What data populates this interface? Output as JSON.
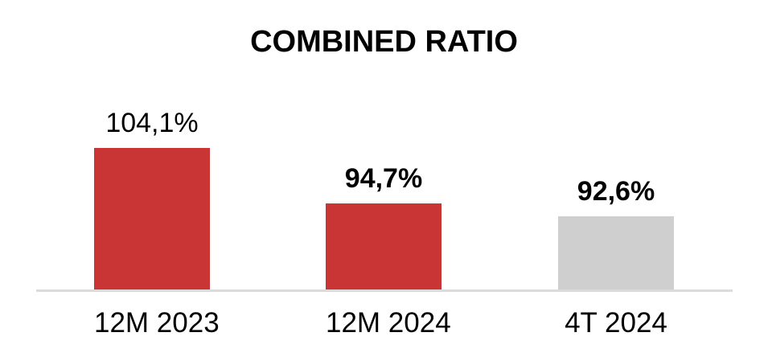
{
  "chart_data": {
    "type": "bar",
    "title": "COMBINED RATIO",
    "categories": [
      "12M 2023",
      "12M 2024",
      "4T 2024"
    ],
    "values": [
      104.1,
      94.7,
      92.6
    ],
    "value_labels": [
      "104,1%",
      "94,7%",
      "92,6%"
    ],
    "label_bold": [
      false,
      true,
      true
    ],
    "bar_colors": [
      "#c93434",
      "#c93434",
      "#d0cfcf"
    ],
    "axis_line_color": "#dbdbdb",
    "text_color": "#000000",
    "background_color": "#ffffff",
    "xlabel": "",
    "ylabel": "",
    "ylim": [
      80,
      105
    ],
    "grid": false,
    "legend": "none"
  }
}
